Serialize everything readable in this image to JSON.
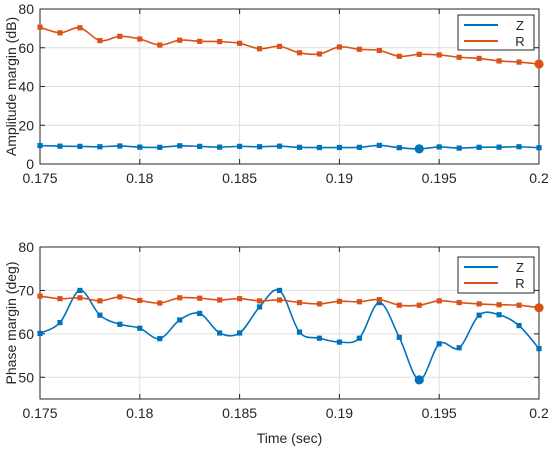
{
  "chart_data": [
    {
      "type": "line",
      "xlabel": "",
      "ylabel": "Amplitude margin (dB)",
      "xlim": [
        0.175,
        0.2
      ],
      "ylim": [
        0,
        80
      ],
      "xticks": [
        0.175,
        0.18,
        0.185,
        0.19,
        0.195,
        0.2
      ],
      "xtick_labels": [
        "0.175",
        "0.18",
        "0.185",
        "0.19",
        "0.195",
        "0.2"
      ],
      "yticks": [
        0,
        20,
        40,
        60,
        80
      ],
      "ytick_labels": [
        "0",
        "20",
        "40",
        "60",
        "80"
      ],
      "grid": true,
      "legend": "top-right",
      "x": [
        0.175,
        0.176,
        0.177,
        0.178,
        0.179,
        0.18,
        0.181,
        0.182,
        0.183,
        0.184,
        0.185,
        0.186,
        0.187,
        0.188,
        0.189,
        0.19,
        0.191,
        0.192,
        0.193,
        0.194,
        0.195,
        0.196,
        0.197,
        0.198,
        0.199,
        0.2
      ],
      "series": [
        {
          "name": "Z",
          "color": "#0072BD",
          "values": [
            9.5,
            9.2,
            9.1,
            8.9,
            9.3,
            8.7,
            8.6,
            9.4,
            9.1,
            8.7,
            9.1,
            8.9,
            9.2,
            8.6,
            8.5,
            8.5,
            8.6,
            9.6,
            8.4,
            7.8,
            8.8,
            8.2,
            8.6,
            8.7,
            8.9,
            8.4
          ],
          "highlight_index": 19
        },
        {
          "name": "R",
          "color": "#D95319",
          "values": [
            70.6,
            67.7,
            70.3,
            63.7,
            65.9,
            64.5,
            61.4,
            63.9,
            63.3,
            63.2,
            62.3,
            59.5,
            60.7,
            57.4,
            56.8,
            60.4,
            59.2,
            58.6,
            55.6,
            56.6,
            56.3,
            55.1,
            54.5,
            53.2,
            52.6,
            51.6
          ],
          "highlight_index": 25
        }
      ]
    },
    {
      "type": "line",
      "xlabel": "Time (sec)",
      "ylabel": "Phase margin (deg)",
      "xlim": [
        0.175,
        0.2
      ],
      "ylim": [
        45,
        80
      ],
      "xticks": [
        0.175,
        0.18,
        0.185,
        0.19,
        0.195,
        0.2
      ],
      "xtick_labels": [
        "0.175",
        "0.18",
        "0.185",
        "0.19",
        "0.195",
        "0.2"
      ],
      "yticks": [
        50,
        60,
        70,
        80
      ],
      "ytick_labels": [
        "50",
        "60",
        "70",
        "80"
      ],
      "grid": true,
      "legend": "top-right",
      "x": [
        0.175,
        0.176,
        0.177,
        0.178,
        0.179,
        0.18,
        0.181,
        0.182,
        0.183,
        0.184,
        0.185,
        0.186,
        0.187,
        0.188,
        0.189,
        0.19,
        0.191,
        0.192,
        0.193,
        0.194,
        0.195,
        0.196,
        0.197,
        0.198,
        0.199,
        0.2
      ],
      "series": [
        {
          "name": "Z",
          "color": "#0072BD",
          "values": [
            60.1,
            62.6,
            70.0,
            64.3,
            62.2,
            61.3,
            58.9,
            63.2,
            64.7,
            60.2,
            60.2,
            66.2,
            70.0,
            60.4,
            59.0,
            58.1,
            59.0,
            67.2,
            59.2,
            49.4,
            57.7,
            56.8,
            64.3,
            64.4,
            61.9,
            56.6
          ],
          "highlight_index": 19
        },
        {
          "name": "R",
          "color": "#D95319",
          "values": [
            68.7,
            68.1,
            68.3,
            67.6,
            68.5,
            67.7,
            67.1,
            68.3,
            68.2,
            67.8,
            68.1,
            67.6,
            67.8,
            67.2,
            66.9,
            67.5,
            67.4,
            67.9,
            66.6,
            66.6,
            67.6,
            67.2,
            66.9,
            66.7,
            66.6,
            66.0
          ],
          "highlight_index": 25
        }
      ]
    }
  ]
}
